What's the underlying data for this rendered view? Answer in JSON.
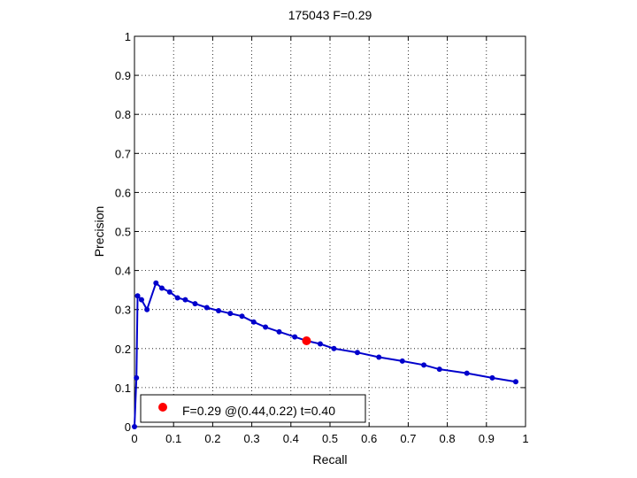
{
  "chart_data": {
    "type": "line",
    "title": "175043 F=0.29",
    "xlabel": "Recall",
    "ylabel": "Precision",
    "xlim": [
      0,
      1
    ],
    "ylim": [
      0,
      1
    ],
    "grid": true,
    "xticks": [
      "0",
      "0.1",
      "0.2",
      "0.3",
      "0.4",
      "0.5",
      "0.6",
      "0.7",
      "0.8",
      "0.9",
      "1"
    ],
    "yticks": [
      "0",
      "0.1",
      "0.2",
      "0.3",
      "0.4",
      "0.5",
      "0.6",
      "0.7",
      "0.8",
      "0.9",
      "1"
    ],
    "series": [
      {
        "color": "#0000cc",
        "points": [
          [
            0.0,
            0.0
          ],
          [
            0.005,
            0.125
          ],
          [
            0.008,
            0.335
          ],
          [
            0.018,
            0.325
          ],
          [
            0.032,
            0.3
          ],
          [
            0.055,
            0.368
          ],
          [
            0.07,
            0.355
          ],
          [
            0.09,
            0.345
          ],
          [
            0.11,
            0.33
          ],
          [
            0.13,
            0.325
          ],
          [
            0.155,
            0.315
          ],
          [
            0.185,
            0.305
          ],
          [
            0.215,
            0.297
          ],
          [
            0.245,
            0.29
          ],
          [
            0.275,
            0.283
          ],
          [
            0.305,
            0.268
          ],
          [
            0.335,
            0.255
          ],
          [
            0.37,
            0.243
          ],
          [
            0.41,
            0.23
          ],
          [
            0.44,
            0.22
          ],
          [
            0.475,
            0.212
          ],
          [
            0.51,
            0.2
          ],
          [
            0.57,
            0.19
          ],
          [
            0.625,
            0.178
          ],
          [
            0.685,
            0.168
          ],
          [
            0.74,
            0.158
          ],
          [
            0.78,
            0.147
          ],
          [
            0.85,
            0.137
          ],
          [
            0.915,
            0.125
          ],
          [
            0.975,
            0.115
          ]
        ]
      }
    ],
    "highlight": {
      "x": 0.44,
      "y": 0.22,
      "color": "#ff0000"
    },
    "legend": {
      "position": "bottom-left",
      "text": "F=0.29 @(0.44,0.22) t=0.40"
    }
  }
}
